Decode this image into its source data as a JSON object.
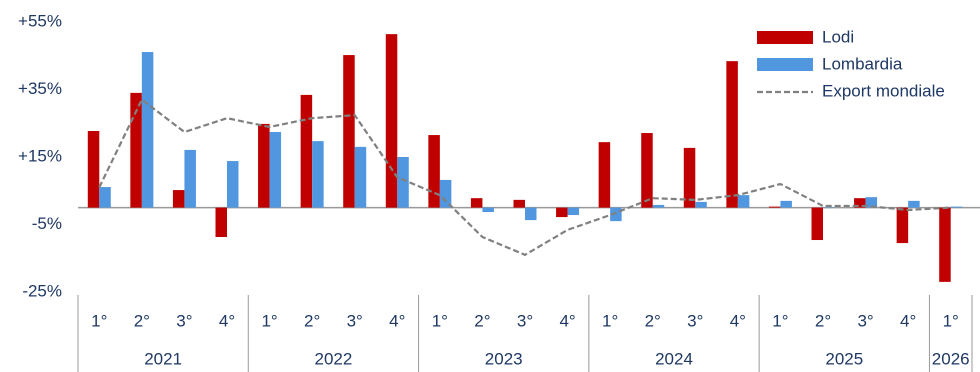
{
  "chart_data": {
    "type": "bar",
    "categories": [
      "1°",
      "2°",
      "3°",
      "4°",
      "1°",
      "2°",
      "3°",
      "4°",
      "1°",
      "2°",
      "3°",
      "4°",
      "1°",
      "2°",
      "3°",
      "4°",
      "1°",
      "2°",
      "3°",
      "4°",
      "1°"
    ],
    "category_groups": [
      "2021",
      "2022",
      "2023",
      "2024",
      "2025",
      "2026"
    ],
    "series": [
      {
        "name": "Lodi",
        "type": "bar",
        "color": "#c00000",
        "values": [
          22.7,
          34,
          5.2,
          -8.7,
          24.8,
          33.4,
          45.2,
          51.4,
          21.5,
          2.8,
          2.3,
          -2.8,
          19.4,
          22.1,
          17.7,
          43.4,
          0.3,
          -9.6,
          2.8,
          -10.5,
          -22
        ]
      },
      {
        "name": "Lombardia",
        "type": "bar",
        "color": "#5197e0",
        "values": [
          6.1,
          46.1,
          17.1,
          13.8,
          22.4,
          19.7,
          18,
          15,
          8.2,
          -1.3,
          -3.7,
          -2.2,
          -4,
          0.8,
          1.7,
          3.7,
          2,
          0,
          3.1,
          2,
          0.3
        ]
      },
      {
        "name": "Export mondiale",
        "type": "line",
        "color": "#808080",
        "dashed": true,
        "values": [
          6,
          32,
          22.4,
          26.5,
          23.9,
          26.5,
          27.4,
          9,
          3.7,
          -8.7,
          -14,
          -6.6,
          -2.2,
          2.8,
          2.3,
          3.7,
          7,
          0.5,
          0.5,
          -0.7,
          0
        ]
      }
    ],
    "ylim": [
      -25,
      55
    ],
    "yticks": [
      {
        "value": -25,
        "label": "-25%"
      },
      {
        "value": -5,
        "label": "-5%"
      },
      {
        "value": 15,
        "label": "+15%"
      },
      {
        "value": 35,
        "label": "+35%"
      },
      {
        "value": 55,
        "label": "+55%"
      }
    ],
    "grid": false,
    "legend": "upper right"
  }
}
